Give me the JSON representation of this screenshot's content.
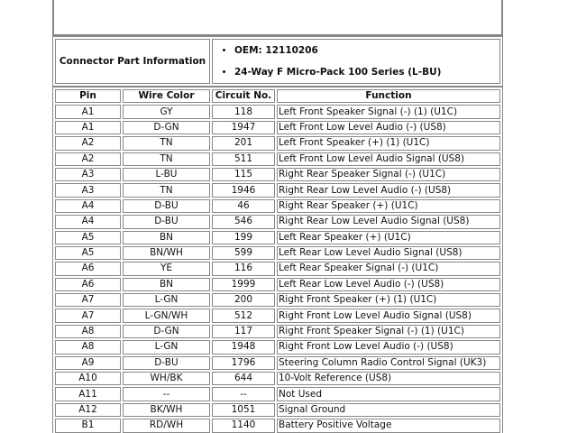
{
  "connector_info": {
    "label": "Connector Part Information",
    "items": [
      "OEM: 12110206",
      "24-Way F Micro-Pack 100 Series (L-BU)"
    ]
  },
  "table": {
    "headers": [
      "Pin",
      "Wire Color",
      "Circuit No.",
      "Function"
    ],
    "rows": [
      [
        "A1",
        "GY",
        "118",
        "Left Front Speaker Signal (-) (1) (U1C)"
      ],
      [
        "A1",
        "D-GN",
        "1947",
        "Left Front Low Level Audio (-) (US8)"
      ],
      [
        "A2",
        "TN",
        "201",
        "Left Front Speaker (+) (1) (U1C)"
      ],
      [
        "A2",
        "TN",
        "511",
        "Left Front Low Level Audio Signal (US8)"
      ],
      [
        "A3",
        "L-BU",
        "115",
        "Right Rear Speaker Signal (-) (U1C)"
      ],
      [
        "A3",
        "TN",
        "1946",
        "Right Rear Low Level Audio (-) (US8)"
      ],
      [
        "A4",
        "D-BU",
        "46",
        "Right Rear Speaker (+) (U1C)"
      ],
      [
        "A4",
        "D-BU",
        "546",
        "Right Rear Low Level Audio Signal (US8)"
      ],
      [
        "A5",
        "BN",
        "199",
        "Left Rear Speaker (+) (U1C)"
      ],
      [
        "A5",
        "BN/WH",
        "599",
        "Left Rear Low Level Audio Signal (US8)"
      ],
      [
        "A6",
        "YE",
        "116",
        "Left Rear Speaker Signal (-) (U1C)"
      ],
      [
        "A6",
        "BN",
        "1999",
        "Left Rear Low Level Audio (-) (US8)"
      ],
      [
        "A7",
        "L-GN",
        "200",
        "Right Front Speaker (+) (1) (U1C)"
      ],
      [
        "A7",
        "L-GN/WH",
        "512",
        "Right Front Low Level Audio Signal (US8)"
      ],
      [
        "A8",
        "D-GN",
        "117",
        "Right Front Speaker Signal (-) (1) (U1C)"
      ],
      [
        "A8",
        "L-GN",
        "1948",
        "Right Front Low Level Audio (-) (US8)"
      ],
      [
        "A9",
        "D-BU",
        "1796",
        "Steering Column Radio Control Signal (UK3)"
      ],
      [
        "A10",
        "WH/BK",
        "644",
        "10-Volt Reference (US8)"
      ],
      [
        "A11",
        "--",
        "--",
        "Not Used"
      ],
      [
        "A12",
        "BK/WH",
        "1051",
        "Signal Ground"
      ],
      [
        "B1",
        "RD/WH",
        "1140",
        "Battery Positive Voltage"
      ]
    ]
  }
}
